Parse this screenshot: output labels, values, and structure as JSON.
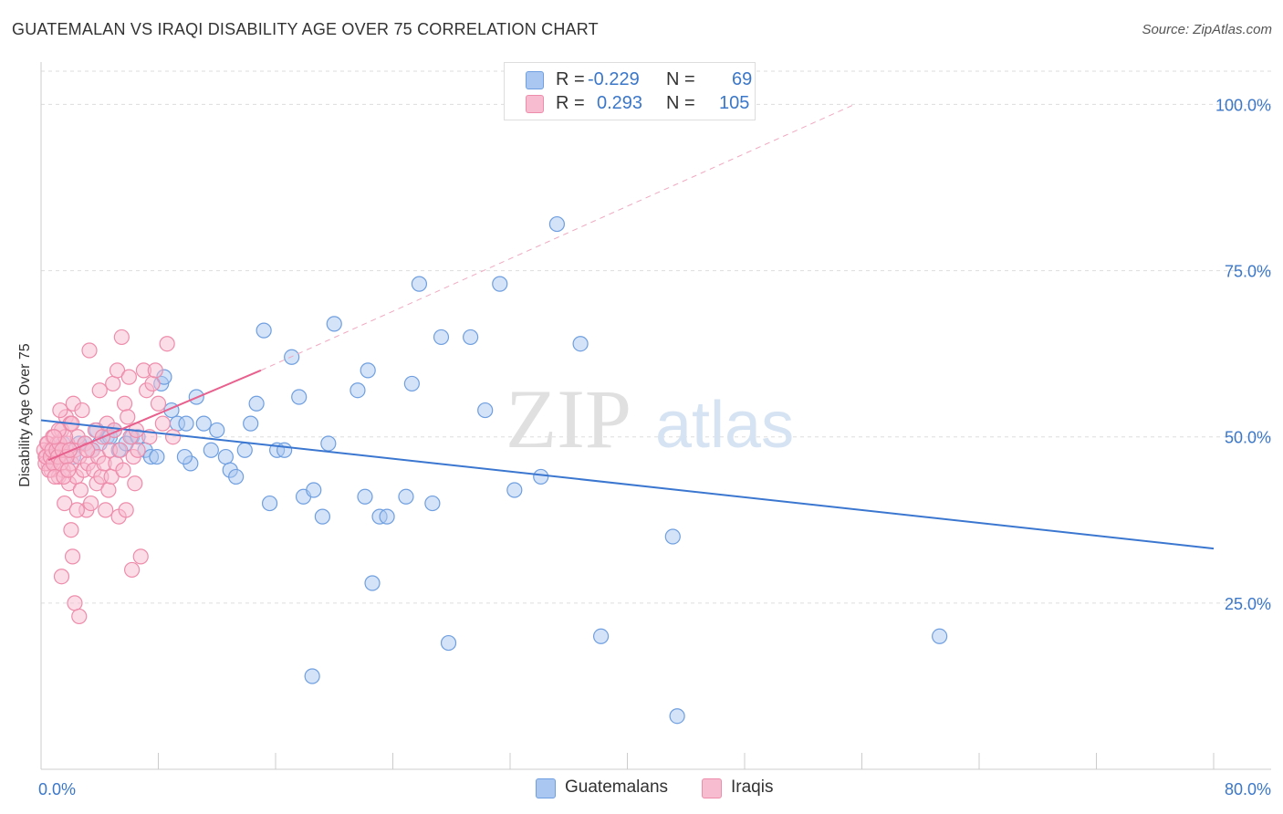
{
  "title": "GUATEMALAN VS IRAQI DISABILITY AGE OVER 75 CORRELATION CHART",
  "source": "Source: ZipAtlas.com",
  "watermark": {
    "zip": "ZIP",
    "atlas": "atlas"
  },
  "legend": {
    "rows": [
      {
        "r_label": "R =",
        "r_value": "-0.229",
        "n_label": "N =",
        "n_value": "69",
        "color": "#a9c7f0",
        "border": "#6f9fe0"
      },
      {
        "r_label": "R =",
        "r_value": "0.293",
        "n_label": "N =",
        "n_value": "105",
        "color": "#f7bcd0",
        "border": "#ee8cab"
      }
    ]
  },
  "bottom_legend": [
    {
      "label": "Guatemalans",
      "color": "#a9c7f0",
      "border": "#6f9fe0"
    },
    {
      "label": "Iraqis",
      "color": "#f7bcd0",
      "border": "#ee8cab"
    }
  ],
  "chart_data": {
    "type": "scatter",
    "title": "GUATEMALAN VS IRAQI DISABILITY AGE OVER 75 CORRELATION CHART",
    "xlabel": "",
    "ylabel": "Disability Age Over 75",
    "xlim": [
      0,
      80
    ],
    "ylim": [
      0,
      105
    ],
    "x_tick_labels": [
      {
        "value": 0,
        "label": "0.0%"
      },
      {
        "value": 80,
        "label": "80.0%"
      }
    ],
    "y_tick_labels": [
      {
        "value": 25,
        "label": "25.0%"
      },
      {
        "value": 50,
        "label": "50.0%"
      },
      {
        "value": 75,
        "label": "75.0%"
      },
      {
        "value": 100,
        "label": "100.0%"
      }
    ],
    "y_gridlines": [
      25,
      50,
      75,
      100
    ],
    "series": [
      {
        "name": "Guatemalans",
        "color": "#6f9fe0",
        "fill": "#a9c7f0",
        "points": [
          [
            3.0,
            49
          ],
          [
            3.5,
            48
          ],
          [
            4.0,
            49
          ],
          [
            4.5,
            50
          ],
          [
            4.7,
            50
          ],
          [
            5.0,
            51
          ],
          [
            5.3,
            48
          ],
          [
            6.2,
            50
          ],
          [
            7.1,
            48
          ],
          [
            7.5,
            47
          ],
          [
            7.9,
            47
          ],
          [
            8.2,
            58
          ],
          [
            8.4,
            59
          ],
          [
            8.9,
            54
          ],
          [
            9.3,
            52
          ],
          [
            9.9,
            52
          ],
          [
            10.2,
            46
          ],
          [
            10.6,
            56
          ],
          [
            11.1,
            52
          ],
          [
            11.6,
            48
          ],
          [
            12.0,
            51
          ],
          [
            12.6,
            47
          ],
          [
            12.9,
            45
          ],
          [
            13.3,
            44
          ],
          [
            13.9,
            48
          ],
          [
            14.3,
            52
          ],
          [
            14.7,
            55
          ],
          [
            15.2,
            66
          ],
          [
            15.6,
            40
          ],
          [
            16.1,
            48
          ],
          [
            16.6,
            48
          ],
          [
            17.1,
            62
          ],
          [
            17.6,
            56
          ],
          [
            17.9,
            41
          ],
          [
            18.6,
            42
          ],
          [
            19.2,
            38
          ],
          [
            19.6,
            49
          ],
          [
            20.0,
            67
          ],
          [
            21.6,
            57
          ],
          [
            22.1,
            41
          ],
          [
            22.3,
            60
          ],
          [
            22.6,
            28
          ],
          [
            23.1,
            38
          ],
          [
            23.6,
            38
          ],
          [
            24.9,
            41
          ],
          [
            25.3,
            58
          ],
          [
            25.8,
            73
          ],
          [
            26.7,
            40
          ],
          [
            27.3,
            65
          ],
          [
            27.8,
            19
          ],
          [
            29.3,
            65
          ],
          [
            30.3,
            54
          ],
          [
            31.3,
            73
          ],
          [
            32.3,
            42
          ],
          [
            34.1,
            44
          ],
          [
            35.2,
            82
          ],
          [
            36.8,
            64
          ],
          [
            38.2,
            20
          ],
          [
            43.1,
            35
          ],
          [
            43.4,
            8
          ],
          [
            61.3,
            20
          ],
          [
            18.5,
            14
          ],
          [
            1.5,
            49
          ],
          [
            2.2,
            47
          ],
          [
            2.6,
            49
          ],
          [
            3.8,
            51
          ],
          [
            5.8,
            49
          ],
          [
            6.6,
            50
          ],
          [
            9.8,
            47
          ]
        ]
      },
      {
        "name": "Iraqis",
        "color": "#ee8cab",
        "fill": "#f7bcd0",
        "points": [
          [
            0.3,
            47
          ],
          [
            0.4,
            49
          ],
          [
            0.5,
            46
          ],
          [
            0.6,
            48
          ],
          [
            0.7,
            45
          ],
          [
            0.8,
            50
          ],
          [
            0.9,
            47
          ],
          [
            1.0,
            46
          ],
          [
            1.1,
            49
          ],
          [
            1.2,
            44
          ],
          [
            1.3,
            48
          ],
          [
            1.4,
            51
          ],
          [
            1.5,
            45
          ],
          [
            1.6,
            47
          ],
          [
            1.7,
            53
          ],
          [
            1.8,
            49
          ],
          [
            1.9,
            43
          ],
          [
            2.0,
            52
          ],
          [
            2.1,
            46
          ],
          [
            2.2,
            55
          ],
          [
            2.3,
            48
          ],
          [
            2.4,
            44
          ],
          [
            2.5,
            50
          ],
          [
            2.6,
            47
          ],
          [
            2.7,
            42
          ],
          [
            2.8,
            54
          ],
          [
            2.9,
            45
          ],
          [
            3.0,
            49
          ],
          [
            3.1,
            39
          ],
          [
            3.2,
            46
          ],
          [
            3.3,
            63
          ],
          [
            3.4,
            40
          ],
          [
            3.5,
            48
          ],
          [
            3.6,
            45
          ],
          [
            3.7,
            51
          ],
          [
            3.8,
            43
          ],
          [
            3.9,
            47
          ],
          [
            4.0,
            57
          ],
          [
            4.1,
            44
          ],
          [
            4.2,
            50
          ],
          [
            4.3,
            46
          ],
          [
            4.4,
            39
          ],
          [
            4.5,
            52
          ],
          [
            4.6,
            42
          ],
          [
            4.7,
            48
          ],
          [
            4.8,
            44
          ],
          [
            4.9,
            58
          ],
          [
            5.0,
            51
          ],
          [
            5.1,
            46
          ],
          [
            5.2,
            60
          ],
          [
            5.3,
            38
          ],
          [
            5.4,
            48
          ],
          [
            5.5,
            65
          ],
          [
            5.6,
            45
          ],
          [
            5.7,
            55
          ],
          [
            5.8,
            39
          ],
          [
            5.9,
            53
          ],
          [
            6.0,
            59
          ],
          [
            6.1,
            50
          ],
          [
            6.2,
            30
          ],
          [
            6.3,
            47
          ],
          [
            6.4,
            43
          ],
          [
            6.5,
            51
          ],
          [
            6.6,
            48
          ],
          [
            6.8,
            32
          ],
          [
            7.0,
            60
          ],
          [
            7.2,
            57
          ],
          [
            7.4,
            50
          ],
          [
            7.6,
            58
          ],
          [
            7.8,
            60
          ],
          [
            8.0,
            55
          ],
          [
            8.3,
            52
          ],
          [
            8.6,
            64
          ],
          [
            9.0,
            50
          ],
          [
            0.2,
            48
          ],
          [
            0.3,
            46
          ],
          [
            0.35,
            47
          ],
          [
            0.45,
            49
          ],
          [
            0.55,
            45
          ],
          [
            0.65,
            47
          ],
          [
            0.75,
            48
          ],
          [
            0.85,
            46
          ],
          [
            0.95,
            44
          ],
          [
            1.05,
            48
          ],
          [
            1.15,
            47
          ],
          [
            1.25,
            49
          ],
          [
            1.35,
            46
          ],
          [
            1.45,
            48
          ],
          [
            1.55,
            44
          ],
          [
            1.65,
            50
          ],
          [
            1.75,
            47
          ],
          [
            1.85,
            45
          ],
          [
            1.95,
            48
          ],
          [
            2.05,
            36
          ],
          [
            2.15,
            32
          ],
          [
            1.4,
            29
          ],
          [
            2.3,
            25
          ],
          [
            2.6,
            23
          ],
          [
            1.6,
            40
          ],
          [
            2.45,
            39
          ],
          [
            3.15,
            48
          ],
          [
            1.2,
            51
          ],
          [
            0.9,
            50
          ],
          [
            1.3,
            54
          ],
          [
            2.1,
            52
          ]
        ]
      }
    ],
    "trend_lines": [
      {
        "series": "Guatemalans",
        "x": [
          0,
          80
        ],
        "y": [
          52.5,
          33.2
        ],
        "style": "solid",
        "color": "#3b77d0"
      },
      {
        "series": "Iraqis",
        "x": [
          0.5,
          15.0
        ],
        "y": [
          46.5,
          60.0
        ],
        "style": "solid",
        "color": "#e8608d"
      },
      {
        "series": "Iraqis",
        "x": [
          15.0,
          55.5
        ],
        "y": [
          60.0,
          100.0
        ],
        "style": "dashed",
        "color": "#f0a8c0"
      }
    ]
  }
}
